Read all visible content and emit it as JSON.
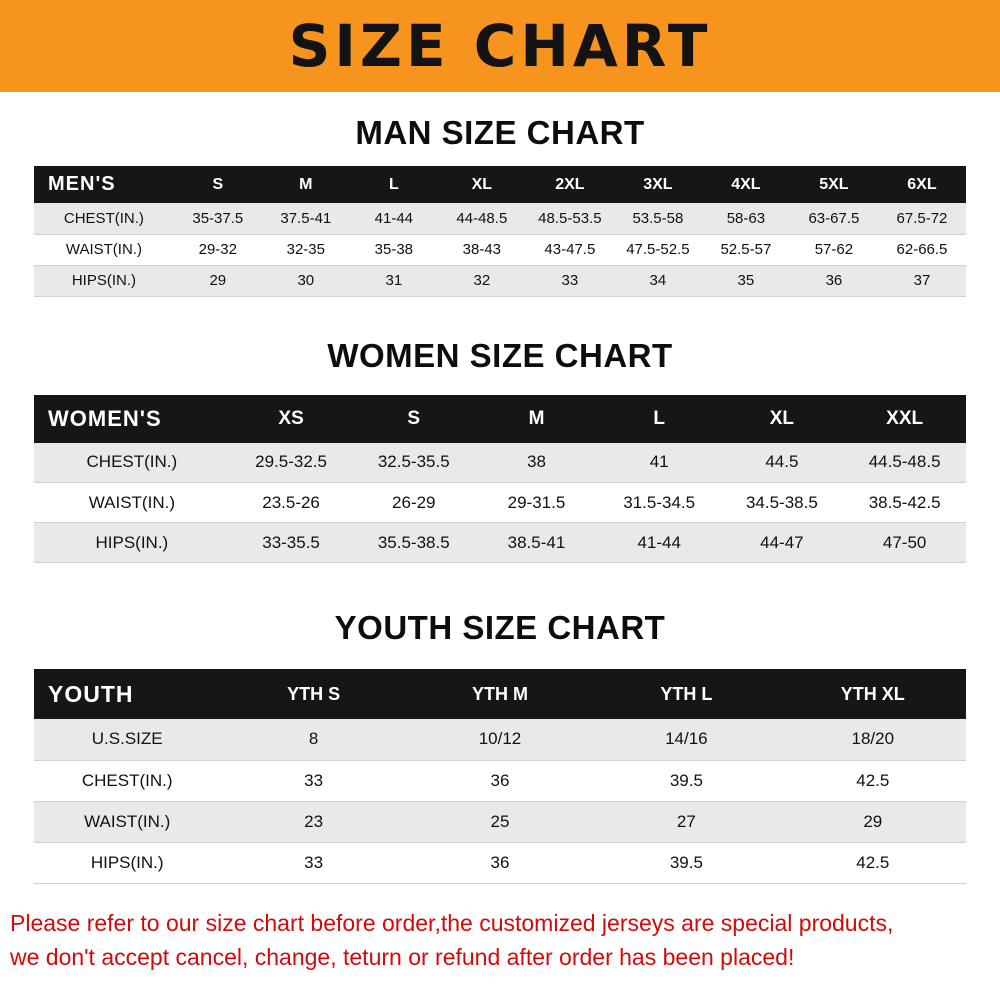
{
  "banner": {
    "title": "SIZE CHART"
  },
  "colors": {
    "banner_bg": "#f7941d",
    "header_row_bg": "#161616",
    "row_alt_bg": "#e9e9e9",
    "notice_text": "#d20a0a"
  },
  "chart_data": [
    {
      "type": "table",
      "title": "MAN SIZE CHART",
      "header": [
        "MEN'S",
        "S",
        "M",
        "L",
        "XL",
        "2XL",
        "3XL",
        "4XL",
        "5XL",
        "6XL"
      ],
      "rows": [
        [
          "CHEST(IN.)",
          "35-37.5",
          "37.5-41",
          "41-44",
          "44-48.5",
          "48.5-53.5",
          "53.5-58",
          "58-63",
          "63-67.5",
          "67.5-72"
        ],
        [
          "WAIST(IN.)",
          "29-32",
          "32-35",
          "35-38",
          "38-43",
          "43-47.5",
          "47.5-52.5",
          "52.5-57",
          "57-62",
          "62-66.5"
        ],
        [
          "HIPS(IN.)",
          "29",
          "30",
          "31",
          "32",
          "33",
          "34",
          "35",
          "36",
          "37"
        ]
      ]
    },
    {
      "type": "table",
      "title": "WOMEN SIZE CHART",
      "header": [
        "WOMEN'S",
        "XS",
        "S",
        "M",
        "L",
        "XL",
        "XXL"
      ],
      "rows": [
        [
          "CHEST(IN.)",
          "29.5-32.5",
          "32.5-35.5",
          "38",
          "41",
          "44.5",
          "44.5-48.5"
        ],
        [
          "WAIST(IN.)",
          "23.5-26",
          "26-29",
          "29-31.5",
          "31.5-34.5",
          "34.5-38.5",
          "38.5-42.5"
        ],
        [
          "HIPS(IN.)",
          "33-35.5",
          "35.5-38.5",
          "38.5-41",
          "41-44",
          "44-47",
          "47-50"
        ]
      ]
    },
    {
      "type": "table",
      "title": "YOUTH SIZE CHART",
      "header": [
        "YOUTH",
        "YTH S",
        "YTH M",
        "YTH L",
        "YTH XL"
      ],
      "rows": [
        [
          "U.S.SIZE",
          "8",
          "10/12",
          "14/16",
          "18/20"
        ],
        [
          "CHEST(IN.)",
          "33",
          "36",
          "39.5",
          "42.5"
        ],
        [
          "WAIST(IN.)",
          "23",
          "25",
          "27",
          "29"
        ],
        [
          "HIPS(IN.)",
          "33",
          "36",
          "39.5",
          "42.5"
        ]
      ]
    }
  ],
  "footer": {
    "lines": [
      "Please refer to our size chart before order,the customized jerseys are special products,",
      "we don't accept cancel, change, teturn or refund after order has been placed!"
    ]
  }
}
